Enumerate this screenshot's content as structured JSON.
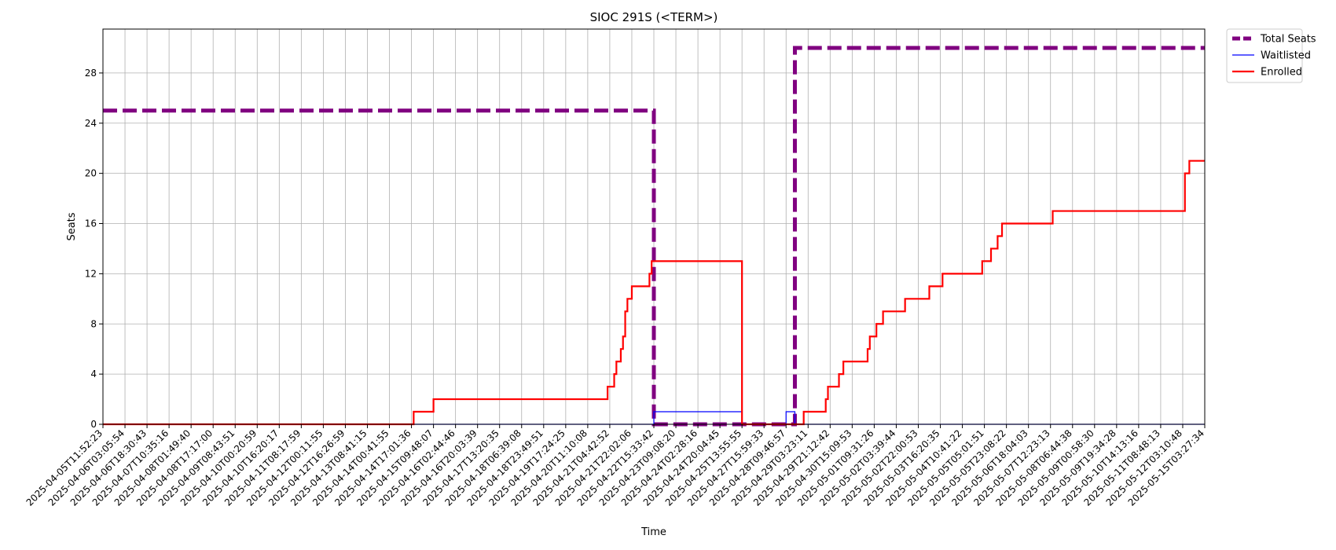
{
  "chart_data": {
    "type": "line",
    "title": "SIOC 291S (<TERM>)",
    "xlabel": "Time",
    "ylabel": "Seats",
    "ylim": [
      0,
      31.5
    ],
    "yticks": [
      0,
      4,
      8,
      12,
      16,
      20,
      24,
      28
    ],
    "grid": true,
    "legend_position": "outside-top-right",
    "x_tick_labels": [
      "2025-04-05T11:52:23",
      "2025-04-06T03:05:54",
      "2025-04-06T18:30:43",
      "2025-04-07T10:35:16",
      "2025-04-08T01:49:40",
      "2025-04-08T17:17:00",
      "2025-04-09T08:43:51",
      "2025-04-10T00:20:59",
      "2025-04-10T16:20:17",
      "2025-04-11T08:17:59",
      "2025-04-12T00:11:55",
      "2025-04-12T16:26:59",
      "2025-04-13T08:41:15",
      "2025-04-14T00:41:55",
      "2025-04-14T17:01:36",
      "2025-04-15T09:48:07",
      "2025-04-16T02:44:46",
      "2025-04-16T20:03:39",
      "2025-04-17T13:20:35",
      "2025-04-18T06:39:08",
      "2025-04-18T23:49:51",
      "2025-04-19T17:24:25",
      "2025-04-20T11:10:08",
      "2025-04-21T04:42:52",
      "2025-04-21T22:02:06",
      "2025-04-22T15:33:42",
      "2025-04-23T09:08:20",
      "2025-04-24T02:28:16",
      "2025-04-24T20:04:45",
      "2025-04-25T13:55:55",
      "2025-04-27T15:59:33",
      "2025-04-28T09:46:57",
      "2025-04-29T03:23:11",
      "2025-04-29T21:12:42",
      "2025-04-30T15:09:53",
      "2025-05-01T09:31:26",
      "2025-05-02T03:39:44",
      "2025-05-02T22:00:53",
      "2025-05-03T16:20:35",
      "2025-05-04T10:41:22",
      "2025-05-05T05:01:51",
      "2025-05-05T23:08:22",
      "2025-05-06T18:04:03",
      "2025-05-07T12:23:13",
      "2025-05-08T06:44:38",
      "2025-05-09T00:58:30",
      "2025-05-09T19:34:28",
      "2025-05-10T14:13:16",
      "2025-05-11T08:48:13",
      "2025-05-12T03:10:48",
      "2025-05-15T03:27:34"
    ],
    "series": [
      {
        "name": "Total Seats",
        "color": "#800080",
        "style": "dashed",
        "x": [
          0,
          25,
          25,
          31.4,
          31.4,
          50
        ],
        "y": [
          25,
          25,
          0,
          0,
          30,
          30
        ]
      },
      {
        "name": "Waitlisted",
        "color": "#0000ff",
        "style": "solid",
        "x": [
          0,
          25,
          25,
          29,
          29,
          31,
          31,
          31.4,
          31.4,
          50
        ],
        "y": [
          0,
          0,
          1,
          1,
          0,
          0,
          1,
          1,
          0,
          0
        ]
      },
      {
        "name": "Enrolled",
        "color": "#ff0000",
        "style": "solid",
        "x": [
          0,
          14.1,
          14.1,
          15,
          15,
          22.9,
          22.9,
          23.2,
          23.2,
          23.3,
          23.3,
          23.5,
          23.5,
          23.6,
          23.6,
          23.7,
          23.7,
          23.8,
          23.8,
          24,
          24,
          24.8,
          24.8,
          24.9,
          24.9,
          29,
          29,
          31.8,
          31.8,
          32.8,
          32.8,
          32.9,
          32.9,
          33.4,
          33.4,
          33.6,
          33.6,
          34.7,
          34.7,
          34.8,
          34.8,
          35.1,
          35.1,
          35.4,
          35.4,
          36.4,
          36.4,
          37.5,
          37.5,
          38.1,
          38.1,
          39.9,
          39.9,
          40.3,
          40.3,
          40.6,
          40.6,
          40.8,
          40.8,
          43.1,
          43.1,
          49.1,
          49.1,
          49.3,
          49.3,
          50
        ],
        "y": [
          0,
          0,
          1,
          1,
          2,
          2,
          3,
          3,
          4,
          4,
          5,
          5,
          6,
          6,
          7,
          7,
          9,
          9,
          10,
          10,
          11,
          11,
          12,
          12,
          13,
          13,
          0,
          0,
          1,
          1,
          2,
          2,
          3,
          3,
          4,
          4,
          5,
          5,
          6,
          6,
          7,
          7,
          8,
          8,
          9,
          9,
          10,
          10,
          11,
          11,
          12,
          12,
          13,
          13,
          14,
          14,
          15,
          15,
          16,
          16,
          17,
          17,
          20,
          20,
          21,
          21
        ]
      }
    ]
  }
}
